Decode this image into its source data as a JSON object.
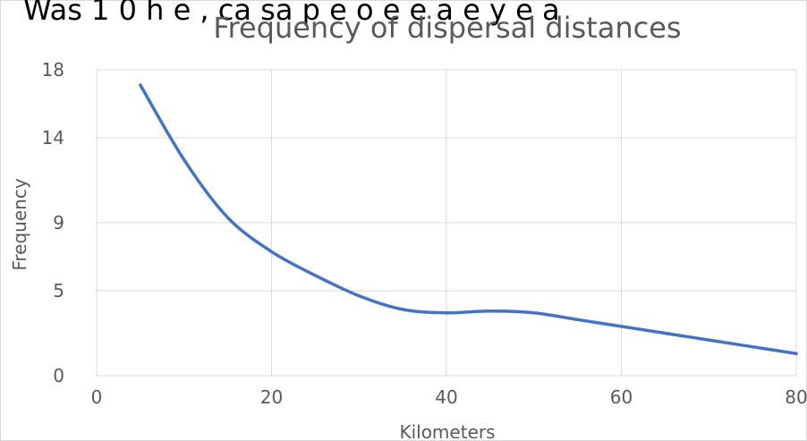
{
  "overflow_text": "Was 1 0 h e ,   ca sa p e o e e a e y e a",
  "chart_data": {
    "type": "line",
    "title": "Frequency of dispersal distances",
    "xlabel": "Kilometers",
    "ylabel": "Frequency",
    "xlim": [
      0,
      80
    ],
    "ylim": [
      0,
      18
    ],
    "x_ticks": [
      "0",
      "20",
      "40",
      "60",
      "80"
    ],
    "y_ticks": [
      "0",
      "5",
      "9",
      "14",
      "18"
    ],
    "grid": true,
    "series": [
      {
        "color": "#4472C4",
        "points": [
          [
            5,
            17.1
          ],
          [
            10,
            12.7
          ],
          [
            15,
            9.3
          ],
          [
            20,
            7.3
          ],
          [
            25,
            5.9
          ],
          [
            30,
            4.7
          ],
          [
            35,
            3.9
          ],
          [
            40,
            3.7
          ],
          [
            45,
            3.8
          ],
          [
            50,
            3.7
          ],
          [
            55,
            3.3
          ],
          [
            60,
            2.9
          ],
          [
            65,
            2.5
          ],
          [
            70,
            2.1
          ],
          [
            75,
            1.7
          ],
          [
            80,
            1.3
          ]
        ]
      }
    ]
  }
}
